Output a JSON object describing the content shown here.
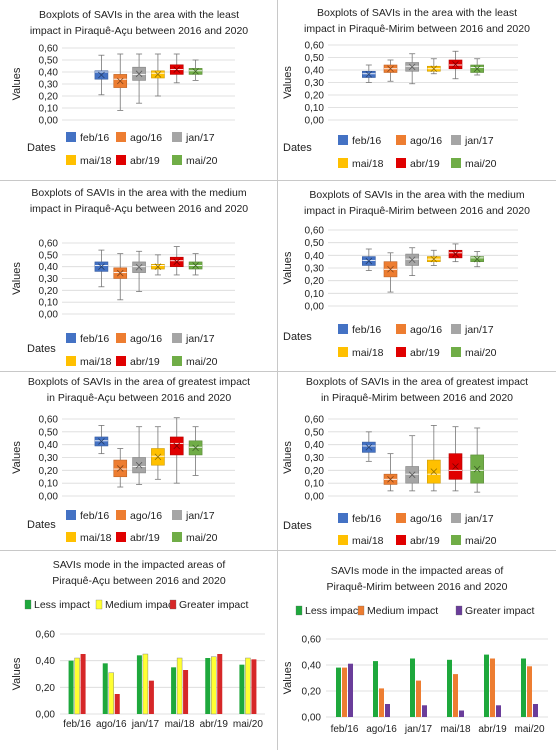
{
  "colors": {
    "feb16": "#4472C4",
    "ago16": "#ED7D31",
    "jan17": "#A5A5A5",
    "mai18": "#FFC000",
    "abr19": "#E00000",
    "mai20": "#70AD47",
    "less": "#1EA83C",
    "medium": "#FFFF33",
    "greater": "#D62728",
    "medium_mirim": "#ED7D31",
    "greater_mirim": "#6A3D9A"
  },
  "chart_data": [
    {
      "id": "acu_least",
      "type": "boxplot",
      "title_lines": [
        "Boxplots of SAVIs in the area with the least",
        "impact in Piraquê-Açu between 2016 and 2020"
      ],
      "ylabel": "Values",
      "xlabel": "Dates",
      "ylim": [
        0,
        0.6
      ],
      "yticks": [
        "0,00",
        "0,10",
        "0,20",
        "0,30",
        "0,40",
        "0,50",
        "0,60"
      ],
      "legend": [
        "feb/16",
        "ago/16",
        "jan/17",
        "mai/18",
        "abr/19",
        "mai/20"
      ],
      "series": [
        {
          "name": "feb/16",
          "min": 0.21,
          "q1": 0.34,
          "median": 0.4,
          "q3": 0.41,
          "max": 0.54
        },
        {
          "name": "ago/16",
          "min": 0.08,
          "q1": 0.27,
          "median": 0.34,
          "q3": 0.38,
          "max": 0.55
        },
        {
          "name": "jan/17",
          "min": 0.14,
          "q1": 0.33,
          "median": 0.38,
          "q3": 0.44,
          "max": 0.55
        },
        {
          "name": "mai/18",
          "min": 0.2,
          "q1": 0.35,
          "median": 0.39,
          "q3": 0.41,
          "max": 0.55
        },
        {
          "name": "abr/19",
          "min": 0.31,
          "q1": 0.38,
          "median": 0.42,
          "q3": 0.46,
          "max": 0.55
        },
        {
          "name": "mai/20",
          "min": 0.33,
          "q1": 0.38,
          "median": 0.41,
          "q3": 0.43,
          "max": 0.5
        }
      ]
    },
    {
      "id": "mirim_least",
      "type": "boxplot",
      "title_lines": [
        "Boxplots of SAVIs in the area with the least",
        "impact in Piraquê-Mirim between 2016 and 2020"
      ],
      "ylabel": "Values",
      "xlabel": "Dates",
      "ylim": [
        0,
        0.6
      ],
      "yticks": [
        "0,00",
        "0,10",
        "0,20",
        "0,30",
        "0,40",
        "0,50",
        "0,60"
      ],
      "legend": [
        "feb/16",
        "ago/16",
        "jan/17",
        "mai/18",
        "abr/19",
        "mai/20"
      ],
      "series": [
        {
          "name": "feb/16",
          "min": 0.3,
          "q1": 0.34,
          "median": 0.37,
          "q3": 0.39,
          "max": 0.44
        },
        {
          "name": "ago/16",
          "min": 0.31,
          "q1": 0.38,
          "median": 0.41,
          "q3": 0.44,
          "max": 0.48
        },
        {
          "name": "jan/17",
          "min": 0.29,
          "q1": 0.39,
          "median": 0.43,
          "q3": 0.46,
          "max": 0.53
        },
        {
          "name": "mai/18",
          "min": 0.37,
          "q1": 0.39,
          "median": 0.41,
          "q3": 0.43,
          "max": 0.49
        },
        {
          "name": "abr/19",
          "min": 0.33,
          "q1": 0.41,
          "median": 0.44,
          "q3": 0.48,
          "max": 0.55
        },
        {
          "name": "mai/20",
          "min": 0.36,
          "q1": 0.38,
          "median": 0.42,
          "q3": 0.44,
          "max": 0.49
        }
      ]
    },
    {
      "id": "acu_medium",
      "type": "boxplot",
      "title_lines": [
        "Boxplots of SAVIs in the area with the medium",
        "impact in Piraquê-Açu between 2016 and 2020"
      ],
      "ylabel": "Values",
      "xlabel": "Dates",
      "ylim": [
        0,
        0.6
      ],
      "yticks": [
        "0,00",
        "0,10",
        "0,20",
        "0,30",
        "0,40",
        "0,50",
        "0,60"
      ],
      "legend": [
        "feb/16",
        "ago/16",
        "jan/17",
        "mai/18",
        "abr/19",
        "mai/20"
      ],
      "series": [
        {
          "name": "feb/16",
          "min": 0.23,
          "q1": 0.36,
          "median": 0.41,
          "q3": 0.44,
          "max": 0.54
        },
        {
          "name": "ago/16",
          "min": 0.12,
          "q1": 0.3,
          "median": 0.35,
          "q3": 0.39,
          "max": 0.51
        },
        {
          "name": "jan/17",
          "min": 0.19,
          "q1": 0.35,
          "median": 0.4,
          "q3": 0.44,
          "max": 0.53
        },
        {
          "name": "mai/18",
          "min": 0.33,
          "q1": 0.38,
          "median": 0.41,
          "q3": 0.42,
          "max": 0.5
        },
        {
          "name": "abr/19",
          "min": 0.33,
          "q1": 0.4,
          "median": 0.45,
          "q3": 0.48,
          "max": 0.57
        },
        {
          "name": "mai/20",
          "min": 0.33,
          "q1": 0.38,
          "median": 0.41,
          "q3": 0.44,
          "max": 0.51
        }
      ]
    },
    {
      "id": "mirim_medium",
      "type": "boxplot",
      "title_lines": [
        "Boxplots of SAVIs in the area with the medium",
        "impact in Piraquê-Mirim between 2016 and 2020"
      ],
      "ylabel": "Values",
      "xlabel": "Dates",
      "ylim": [
        0,
        0.6
      ],
      "yticks": [
        "0,00",
        "0,10",
        "0,20",
        "0,30",
        "0,40",
        "0,50",
        "0,60"
      ],
      "legend": [
        "feb/16",
        "ago/16",
        "jan/17",
        "mai/18",
        "abr/19",
        "mai/20"
      ],
      "series": [
        {
          "name": "feb/16",
          "min": 0.28,
          "q1": 0.32,
          "median": 0.36,
          "q3": 0.39,
          "max": 0.45
        },
        {
          "name": "ago/16",
          "min": 0.11,
          "q1": 0.23,
          "median": 0.29,
          "q3": 0.35,
          "max": 0.42
        },
        {
          "name": "jan/17",
          "min": 0.24,
          "q1": 0.32,
          "median": 0.37,
          "q3": 0.41,
          "max": 0.46
        },
        {
          "name": "mai/18",
          "min": 0.32,
          "q1": 0.35,
          "median": 0.37,
          "q3": 0.39,
          "max": 0.44
        },
        {
          "name": "abr/19",
          "min": 0.35,
          "q1": 0.38,
          "median": 0.42,
          "q3": 0.44,
          "max": 0.49
        },
        {
          "name": "mai/20",
          "min": 0.31,
          "q1": 0.35,
          "median": 0.38,
          "q3": 0.39,
          "max": 0.43
        }
      ]
    },
    {
      "id": "acu_greatest",
      "type": "boxplot",
      "title_lines": [
        "Boxplots of SAVIs in the area of greatest impact",
        "in Piraquê-Açu between 2016 and 2020"
      ],
      "ylabel": "Values",
      "xlabel": "Dates",
      "ylim": [
        0,
        0.6
      ],
      "yticks": [
        "0,00",
        "0,10",
        "0,20",
        "0,30",
        "0,40",
        "0,50",
        "0,60"
      ],
      "legend": [
        "feb/16",
        "ago/16",
        "jan/17",
        "mai/18",
        "abr/19",
        "mai/20"
      ],
      "series": [
        {
          "name": "feb/16",
          "min": 0.33,
          "q1": 0.39,
          "median": 0.43,
          "q3": 0.46,
          "max": 0.55
        },
        {
          "name": "ago/16",
          "min": 0.07,
          "q1": 0.15,
          "median": 0.21,
          "q3": 0.28,
          "max": 0.37
        },
        {
          "name": "jan/17",
          "min": 0.09,
          "q1": 0.18,
          "median": 0.23,
          "q3": 0.3,
          "max": 0.54
        },
        {
          "name": "mai/18",
          "min": 0.13,
          "q1": 0.24,
          "median": 0.31,
          "q3": 0.37,
          "max": 0.54
        },
        {
          "name": "abr/19",
          "min": 0.1,
          "q1": 0.32,
          "median": 0.41,
          "q3": 0.46,
          "max": 0.61
        },
        {
          "name": "mai/20",
          "min": 0.16,
          "q1": 0.32,
          "median": 0.38,
          "q3": 0.43,
          "max": 0.54
        }
      ]
    },
    {
      "id": "mirim_greatest",
      "type": "boxplot",
      "title_lines": [
        "Boxplots of SAVIs in the area of greatest impact",
        "in Piraquê-Mirim between 2016 and 2020"
      ],
      "ylabel": "Values",
      "xlabel": "Dates",
      "ylim": [
        0,
        0.6
      ],
      "yticks": [
        "0,00",
        "0,10",
        "0,20",
        "0,30",
        "0,40",
        "0,50",
        "0,60"
      ],
      "legend": [
        "feb/16",
        "ago/16",
        "jan/17",
        "mai/18",
        "abr/19",
        "mai/20"
      ],
      "series": [
        {
          "name": "feb/16",
          "min": 0.27,
          "q1": 0.34,
          "median": 0.39,
          "q3": 0.42,
          "max": 0.5
        },
        {
          "name": "ago/16",
          "min": 0.04,
          "q1": 0.09,
          "median": 0.13,
          "q3": 0.17,
          "max": 0.33
        },
        {
          "name": "jan/17",
          "min": 0.04,
          "q1": 0.1,
          "median": 0.17,
          "q3": 0.23,
          "max": 0.47
        },
        {
          "name": "mai/18",
          "min": 0.04,
          "q1": 0.1,
          "median": 0.17,
          "q3": 0.28,
          "max": 0.55
        },
        {
          "name": "abr/19",
          "min": 0.04,
          "q1": 0.13,
          "median": 0.2,
          "q3": 0.33,
          "max": 0.54
        },
        {
          "name": "mai/20",
          "min": 0.03,
          "q1": 0.1,
          "median": 0.2,
          "q3": 0.32,
          "max": 0.53
        }
      ]
    },
    {
      "id": "acu_mode",
      "type": "bar",
      "title_lines": [
        "SAVIs mode in the impacted areas of",
        "Piraquê-Açu between 2016 and 2020"
      ],
      "ylabel": "Values",
      "ylim": [
        0,
        0.6
      ],
      "yticks": [
        "0,00",
        "0,20",
        "0,40",
        "0,60"
      ],
      "categories": [
        "feb/16",
        "ago/16",
        "jan/17",
        "mai/18",
        "abr/19",
        "mai/20"
      ],
      "series": [
        {
          "name": "Less impact",
          "values": [
            0.4,
            0.38,
            0.44,
            0.35,
            0.42,
            0.37
          ]
        },
        {
          "name": "Medium impact",
          "values": [
            0.42,
            0.31,
            0.45,
            0.42,
            0.43,
            0.42
          ]
        },
        {
          "name": "Greater impact",
          "values": [
            0.45,
            0.15,
            0.25,
            0.33,
            0.45,
            0.41
          ]
        }
      ]
    },
    {
      "id": "mirim_mode",
      "type": "bar",
      "title_lines": [
        "SAVIs mode in the impacted areas of",
        "Piraquê-Mirim between 2016 and 2020"
      ],
      "ylabel": "Values",
      "ylim": [
        0,
        0.6
      ],
      "yticks": [
        "0,00",
        "0,20",
        "0,40",
        "0,60"
      ],
      "categories": [
        "feb/16",
        "ago/16",
        "jan/17",
        "mai/18",
        "abr/19",
        "mai/20"
      ],
      "series": [
        {
          "name": "Less impact",
          "values": [
            0.38,
            0.43,
            0.45,
            0.44,
            0.48,
            0.45
          ]
        },
        {
          "name": "Medium impact",
          "values": [
            0.38,
            0.22,
            0.28,
            0.33,
            0.45,
            0.39
          ]
        },
        {
          "name": "Greater impact",
          "values": [
            0.41,
            0.1,
            0.09,
            0.05,
            0.09,
            0.1
          ]
        }
      ]
    }
  ]
}
